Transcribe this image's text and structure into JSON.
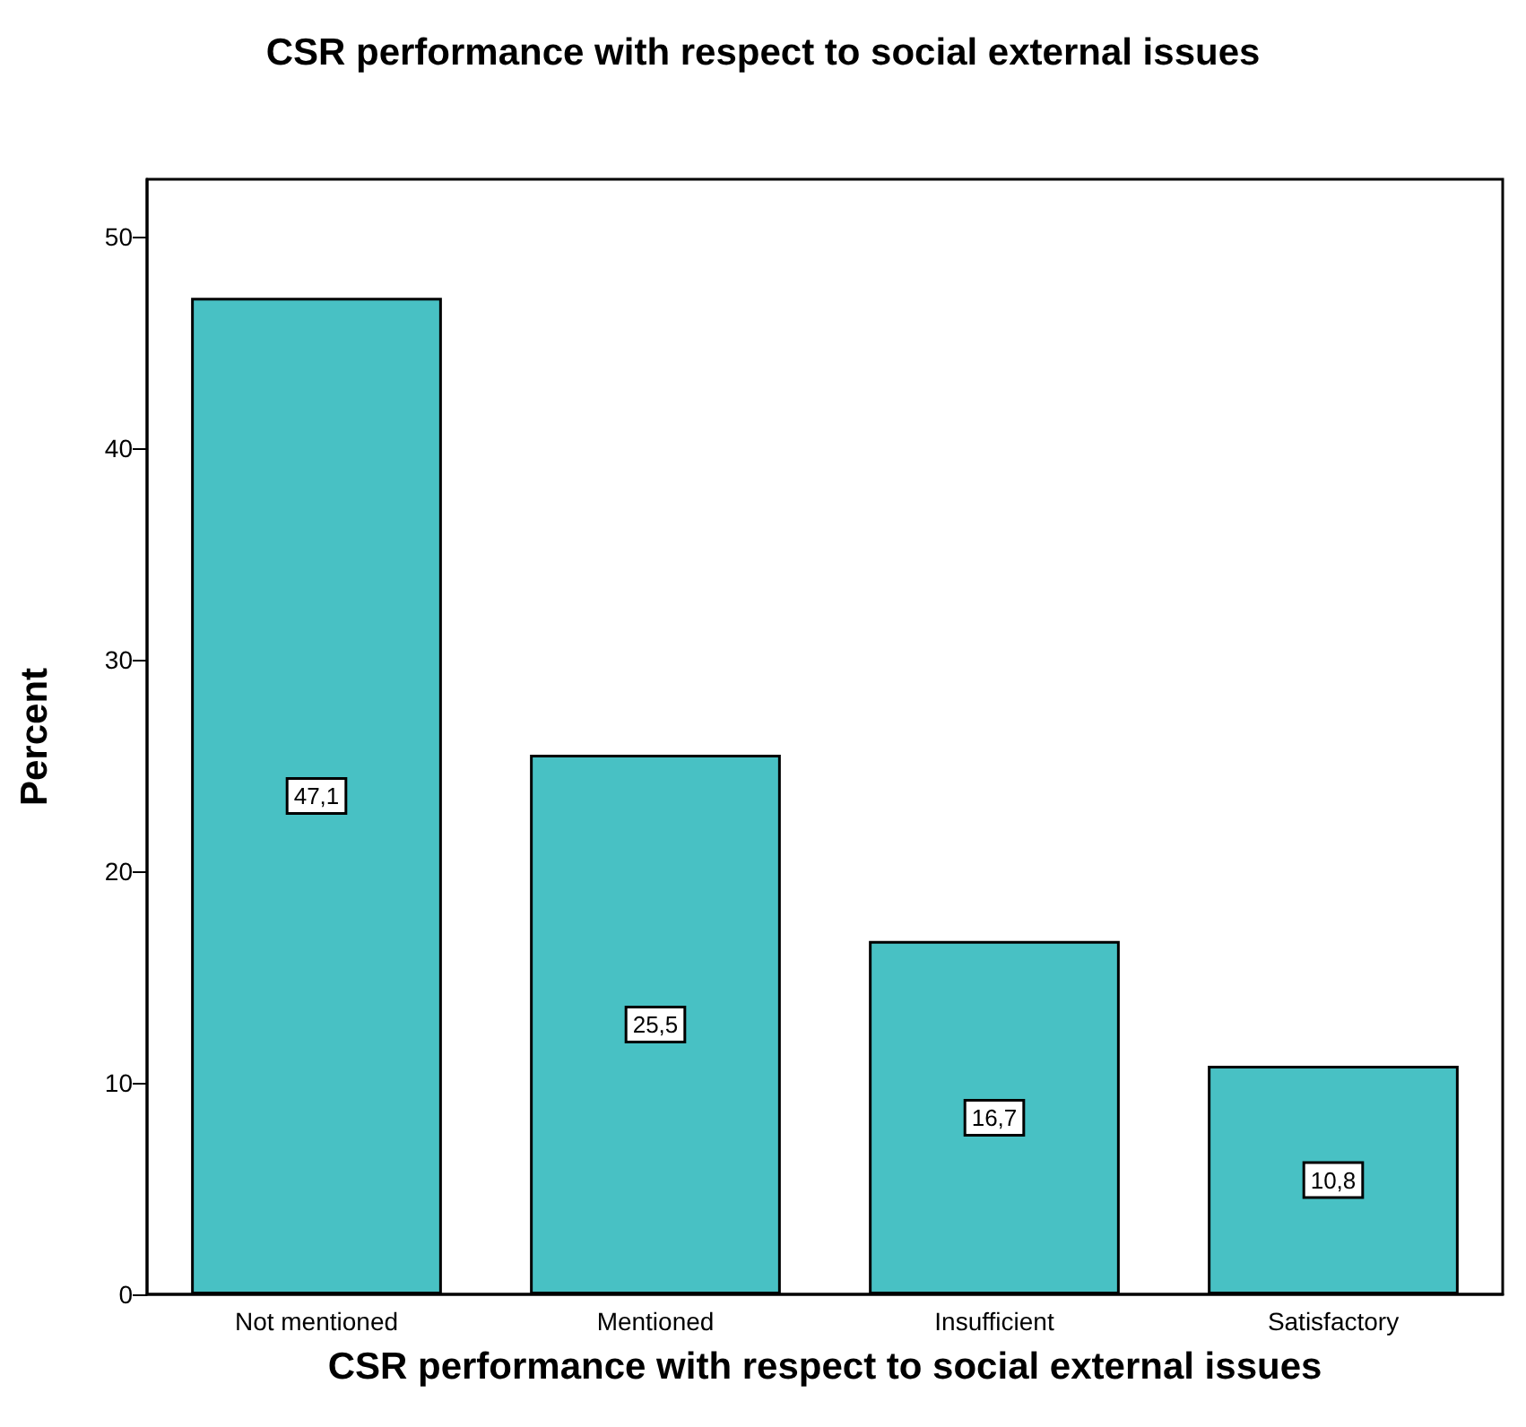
{
  "chart_data": {
    "type": "bar",
    "title": "CSR performance with respect to social external issues",
    "xlabel": "CSR performance with respect to social external issues",
    "ylabel": "Percent",
    "categories": [
      "Not mentioned",
      "Mentioned",
      "Insufficient",
      "Satisfactory"
    ],
    "values": [
      47.1,
      25.5,
      16.7,
      10.8
    ],
    "value_labels": [
      "47,1",
      "25,5",
      "16,7",
      "10,8"
    ],
    "color": "#48c1c4",
    "ylim": [
      0,
      52.7
    ],
    "yticks": [
      0,
      10,
      20,
      30,
      40,
      50
    ]
  }
}
